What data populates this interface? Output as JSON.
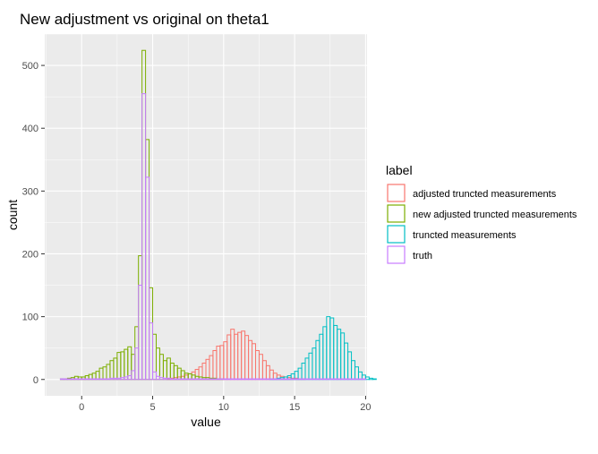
{
  "chart_data": {
    "type": "histogram",
    "title": "New adjustment vs original on theta1",
    "xlabel": "value",
    "ylabel": "count",
    "xlim": [
      -2.6,
      20.1
    ],
    "ylim": [
      -26,
      550
    ],
    "x_ticks": [
      0,
      5,
      10,
      15,
      20
    ],
    "y_ticks": [
      0,
      100,
      200,
      300,
      400,
      500
    ],
    "grid": true,
    "bin_width": 0.25,
    "legend": {
      "title": "label",
      "position": "right"
    },
    "series": [
      {
        "name": "adjusted truncted measurements",
        "color": "#F8766D",
        "start": 6.0,
        "counts": [
          1,
          2,
          3,
          4,
          5,
          7,
          9,
          12,
          16,
          20,
          26,
          32,
          38,
          46,
          53,
          54,
          60,
          71,
          80,
          72,
          75,
          77,
          70,
          62,
          57,
          46,
          40,
          30,
          22,
          15,
          10,
          7,
          5,
          4,
          3,
          2,
          2,
          1,
          1
        ]
      },
      {
        "name": "new adjusted truncted measurements",
        "color": "#7CAE00",
        "start": -1.5,
        "counts": [
          1,
          1,
          2,
          3,
          5,
          4,
          4,
          6,
          8,
          10,
          13,
          18,
          20,
          24,
          30,
          34,
          43,
          44,
          48,
          52,
          40,
          84,
          197,
          524,
          382,
          146,
          72,
          50,
          40,
          30,
          34,
          26,
          22,
          18,
          14,
          10,
          9,
          7,
          5,
          4,
          3,
          3,
          2,
          2,
          1,
          1
        ]
      },
      {
        "name": "truncted measurements",
        "color": "#00BFC4",
        "start": 13.25,
        "counts": [
          1,
          1,
          2,
          3,
          4,
          6,
          9,
          13,
          18,
          26,
          34,
          42,
          50,
          62,
          72,
          84,
          100,
          98,
          86,
          80,
          74,
          58,
          44,
          30,
          20,
          12,
          7,
          4,
          2,
          1
        ]
      },
      {
        "name": "truth",
        "color": "#C77CFF",
        "start": -1.5,
        "counts": [
          1,
          1,
          1,
          1,
          1,
          1,
          1,
          1,
          1,
          1,
          1,
          1,
          1,
          1,
          2,
          2,
          2,
          3,
          4,
          6,
          14,
          50,
          150,
          455,
          322,
          90,
          12,
          5,
          3,
          2,
          2,
          1,
          1,
          1,
          1,
          1,
          1,
          1,
          1,
          1,
          1,
          1,
          1,
          1,
          1,
          1,
          1,
          1,
          1,
          1,
          1,
          1,
          1,
          1,
          1,
          1,
          1,
          1,
          1,
          1,
          1,
          1,
          1,
          1,
          1,
          1,
          1,
          1,
          1,
          1,
          1,
          1,
          1,
          1,
          1,
          1,
          1,
          1,
          1,
          1,
          1,
          1,
          1,
          1,
          1,
          1
        ]
      }
    ]
  }
}
